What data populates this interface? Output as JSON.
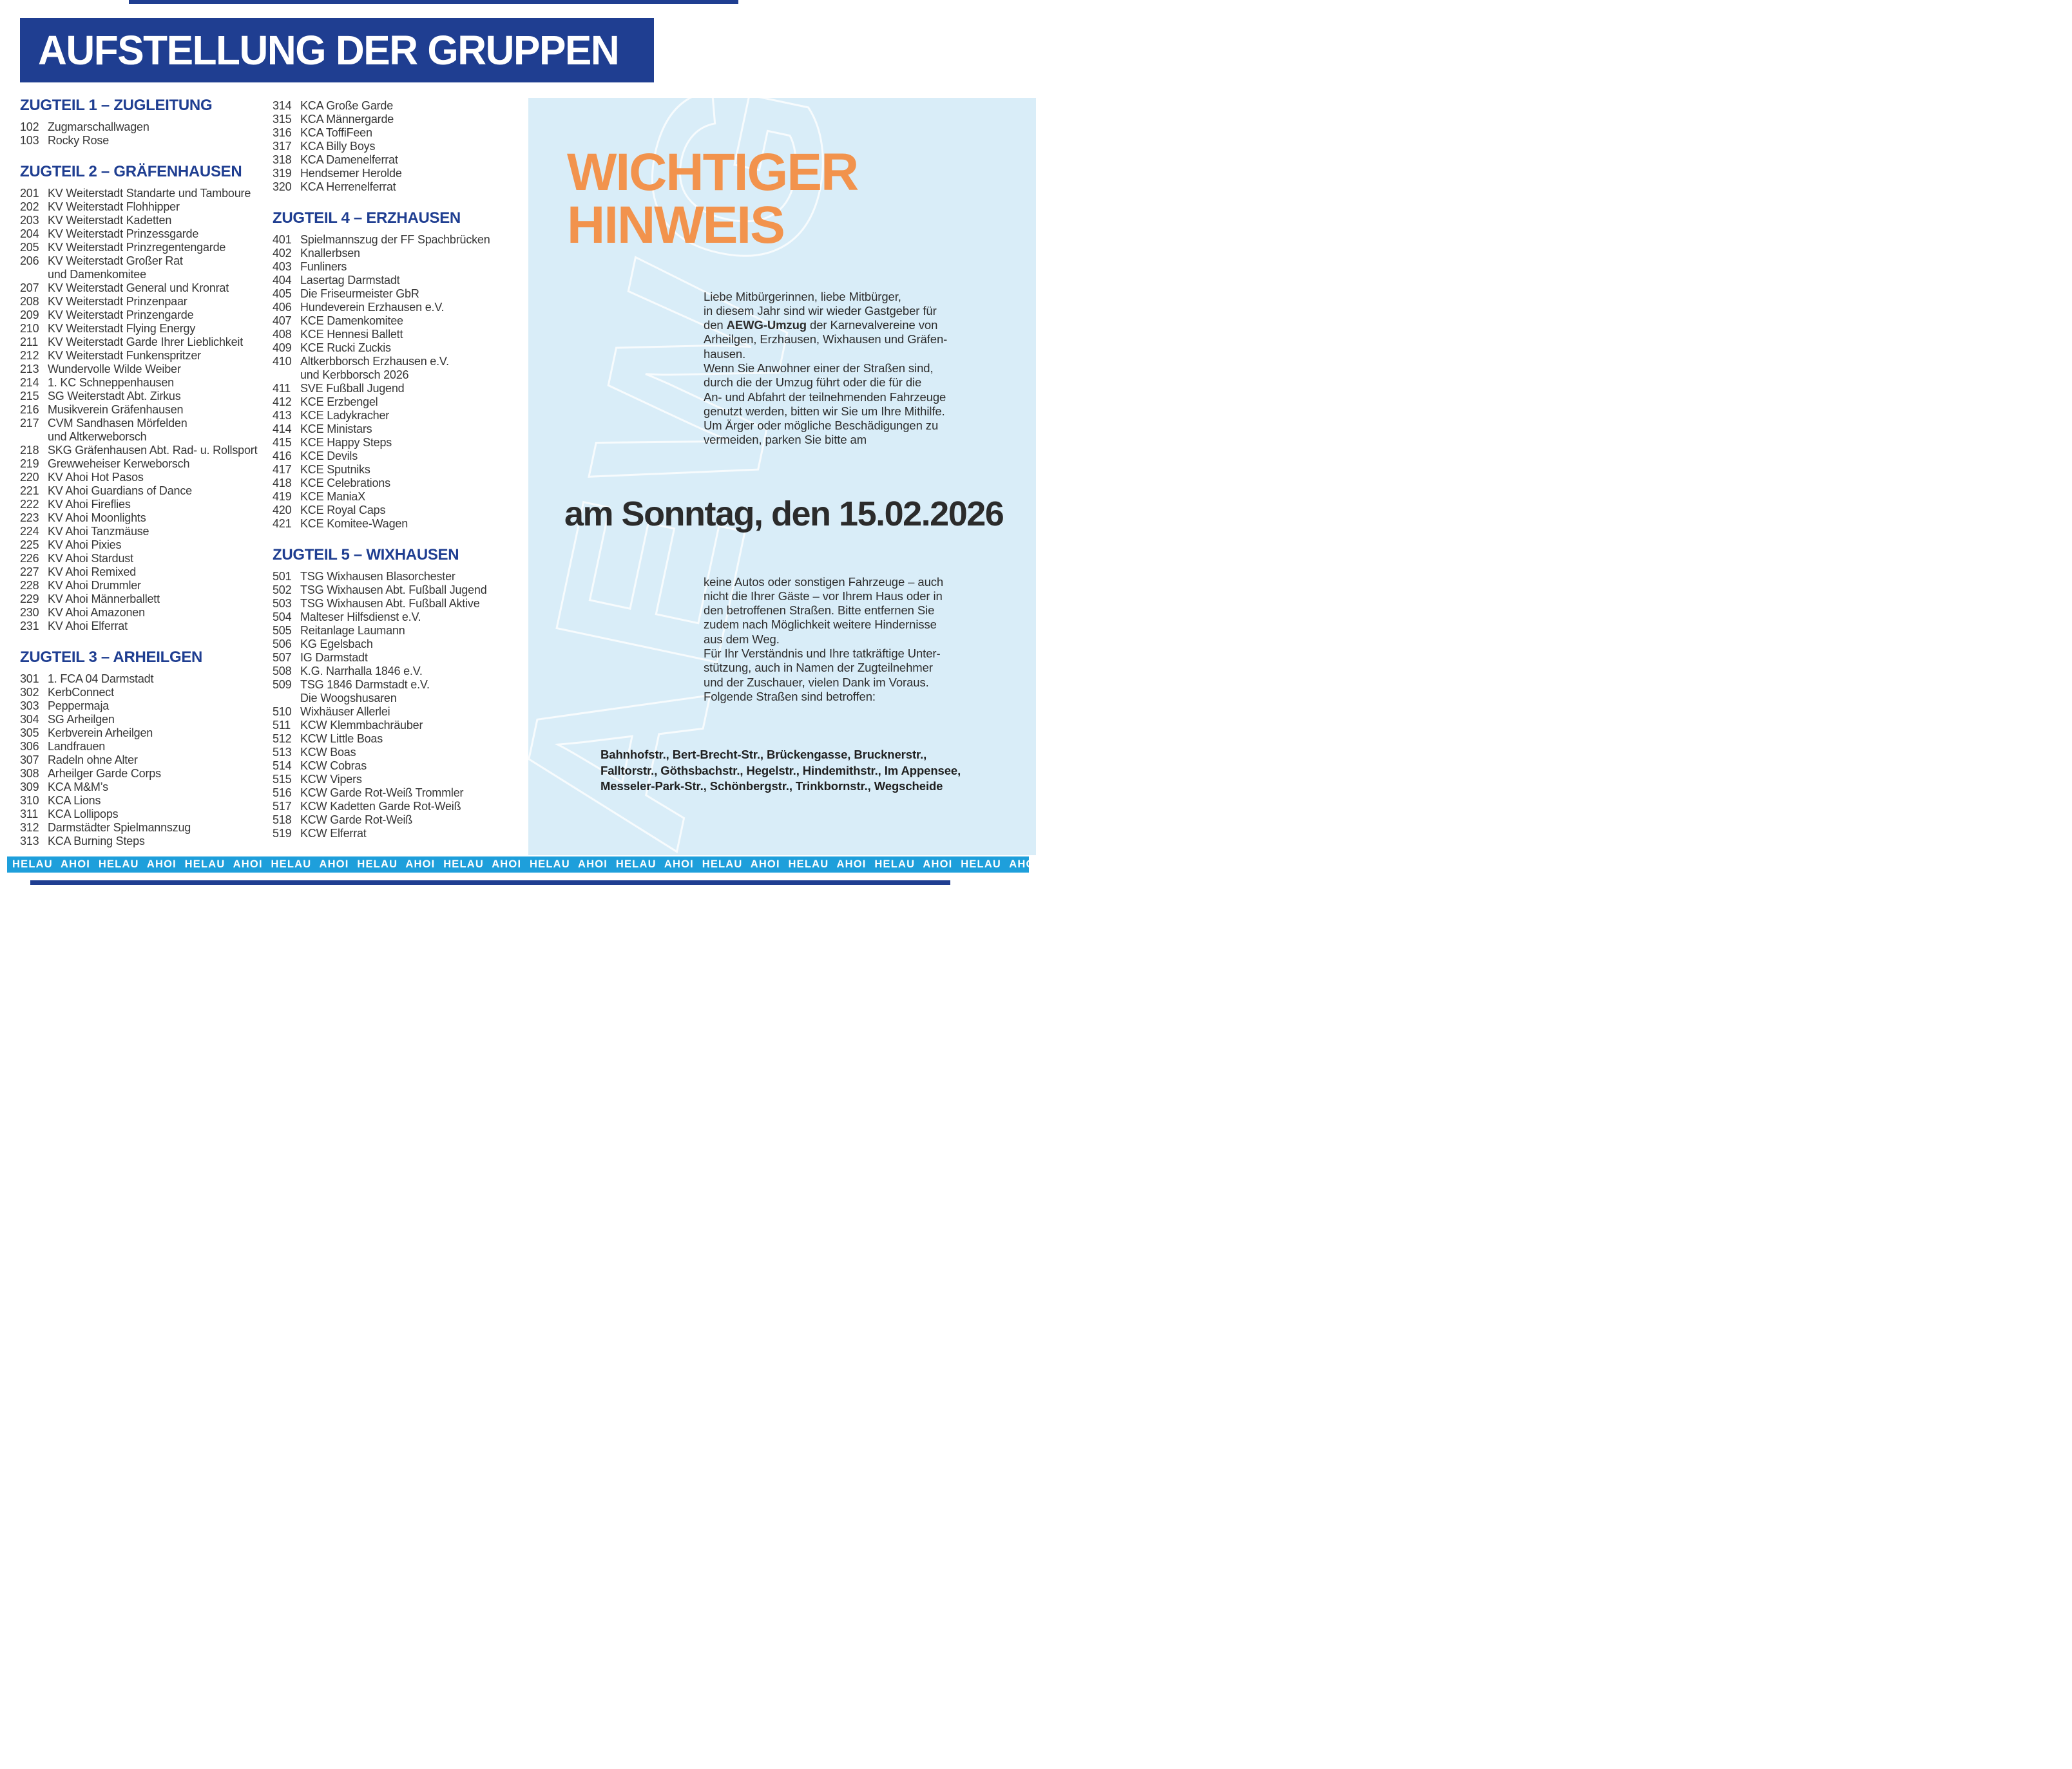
{
  "title": "AUFSTELLUNG DER GRUPPEN",
  "colors": {
    "primary_blue": "#1f3e91",
    "accent_orange": "#f2934d",
    "band_blue": "#1e9fdb",
    "panel_background": "#d9edf8"
  },
  "sections": [
    {
      "heading": "ZUGTEIL 1 – ZUGLEITUNG",
      "items": [
        {
          "no": "102",
          "name": "Zugmarschallwagen"
        },
        {
          "no": "103",
          "name": "Rocky Rose"
        }
      ]
    },
    {
      "heading": "ZUGTEIL 2 – GRÄFENHAUSEN",
      "items": [
        {
          "no": "201",
          "name": "KV Weiterstadt Standarte und Tamboure"
        },
        {
          "no": "202",
          "name": "KV Weiterstadt Flohhipper"
        },
        {
          "no": "203",
          "name": "KV Weiterstadt Kadetten"
        },
        {
          "no": "204",
          "name": "KV Weiterstadt Prinzessgarde"
        },
        {
          "no": "205",
          "name": "KV Weiterstadt Prinzregentengarde"
        },
        {
          "no": "206",
          "name": "KV Weiterstadt Großer Rat",
          "cont": "und Damenkomitee"
        },
        {
          "no": "207",
          "name": "KV Weiterstadt General und Kronrat"
        },
        {
          "no": "208",
          "name": "KV Weiterstadt Prinzenpaar"
        },
        {
          "no": "209",
          "name": "KV Weiterstadt Prinzengarde"
        },
        {
          "no": "210",
          "name": "KV Weiterstadt Flying Energy"
        },
        {
          "no": "211",
          "name": "KV Weiterstadt Garde Ihrer Lieblichkeit"
        },
        {
          "no": "212",
          "name": "KV Weiterstadt Funkenspritzer"
        },
        {
          "no": "213",
          "name": "Wundervolle Wilde Weiber"
        },
        {
          "no": "214",
          "name": "1. KC Schneppenhausen"
        },
        {
          "no": "215",
          "name": "SG Weiterstadt Abt. Zirkus"
        },
        {
          "no": "216",
          "name": "Musikverein Gräfenhausen"
        },
        {
          "no": "217",
          "name": "CVM Sandhasen Mörfelden",
          "cont": "und Altkerweborsch"
        },
        {
          "no": "218",
          "name": "SKG Gräfenhausen Abt. Rad- u. Rollsport"
        },
        {
          "no": "219",
          "name": "Grewweheiser Kerweborsch"
        },
        {
          "no": "220",
          "name": "KV Ahoi Hot Pasos"
        },
        {
          "no": "221",
          "name": "KV Ahoi Guardians of Dance"
        },
        {
          "no": "222",
          "name": "KV Ahoi Fireflies"
        },
        {
          "no": "223",
          "name": "KV Ahoi Moonlights"
        },
        {
          "no": "224",
          "name": "KV Ahoi Tanzmäuse"
        },
        {
          "no": "225",
          "name": "KV Ahoi Pixies"
        },
        {
          "no": "226",
          "name": "KV Ahoi Stardust"
        },
        {
          "no": "227",
          "name": "KV Ahoi Remixed"
        },
        {
          "no": "228",
          "name": "KV Ahoi Drummler"
        },
        {
          "no": "229",
          "name": "KV Ahoi Männerballett"
        },
        {
          "no": "230",
          "name": "KV Ahoi Amazonen"
        },
        {
          "no": "231",
          "name": "KV Ahoi Elferrat"
        }
      ]
    },
    {
      "heading": "ZUGTEIL 3 – ARHEILGEN",
      "items": [
        {
          "no": "301",
          "name": "1. FCA 04 Darmstadt"
        },
        {
          "no": "302",
          "name": "KerbConnect"
        },
        {
          "no": "303",
          "name": "Peppermaja"
        },
        {
          "no": "304",
          "name": "SG Arheilgen"
        },
        {
          "no": "305",
          "name": "Kerbverein Arheilgen"
        },
        {
          "no": "306",
          "name": "Landfrauen"
        },
        {
          "no": "307",
          "name": "Radeln ohne Alter"
        },
        {
          "no": "308",
          "name": "Arheilger Garde Corps"
        },
        {
          "no": "309",
          "name": "KCA M&M’s"
        },
        {
          "no": "310",
          "name": "KCA Lions"
        },
        {
          "no": "311",
          "name": "KCA Lollipops"
        },
        {
          "no": "312",
          "name": "Darmstädter Spielmannszug"
        },
        {
          "no": "313",
          "name": "KCA Burning Steps"
        }
      ]
    },
    {
      "heading": "",
      "items": [
        {
          "no": "314",
          "name": "KCA Große Garde"
        },
        {
          "no": "315",
          "name": "KCA Männergarde"
        },
        {
          "no": "316",
          "name": "KCA ToffiFeen"
        },
        {
          "no": "317",
          "name": "KCA Billy Boys"
        },
        {
          "no": "318",
          "name": "KCA Damenelferrat"
        },
        {
          "no": "319",
          "name": "Hendsemer Herolde"
        },
        {
          "no": "320",
          "name": "KCA Herrenelferrat"
        }
      ]
    },
    {
      "heading": "ZUGTEIL 4 – ERZHAUSEN",
      "items": [
        {
          "no": "401",
          "name": "Spielmannszug der FF Spachbrücken"
        },
        {
          "no": "402",
          "name": "Knallerbsen"
        },
        {
          "no": "403",
          "name": "Funliners"
        },
        {
          "no": "404",
          "name": "Lasertag Darmstadt"
        },
        {
          "no": "405",
          "name": "Die Friseurmeister GbR"
        },
        {
          "no": "406",
          "name": "Hundeverein Erzhausen e.V."
        },
        {
          "no": "407",
          "name": "KCE Damenkomitee"
        },
        {
          "no": "408",
          "name": "KCE Hennesi Ballett"
        },
        {
          "no": "409",
          "name": "KCE Rucki Zuckis"
        },
        {
          "no": "410",
          "name": "Altkerbborsch Erzhausen e.V.",
          "cont": "und Kerbborsch 2026"
        },
        {
          "no": "411",
          "name": "SVE Fußball Jugend"
        },
        {
          "no": "412",
          "name": "KCE Erzbengel"
        },
        {
          "no": "413",
          "name": "KCE Ladykracher"
        },
        {
          "no": "414",
          "name": "KCE Ministars"
        },
        {
          "no": "415",
          "name": "KCE Happy Steps"
        },
        {
          "no": "416",
          "name": "KCE Devils"
        },
        {
          "no": "417",
          "name": "KCE Sputniks"
        },
        {
          "no": "418",
          "name": "KCE Celebrations"
        },
        {
          "no": "419",
          "name": "KCE ManiaX"
        },
        {
          "no": "420",
          "name": "KCE Royal Caps"
        },
        {
          "no": "421",
          "name": "KCE Komitee-Wagen"
        }
      ]
    },
    {
      "heading": "ZUGTEIL 5 – WIXHAUSEN",
      "items": [
        {
          "no": "501",
          "name": "TSG Wixhausen Blasorchester"
        },
        {
          "no": "502",
          "name": "TSG Wixhausen Abt. Fußball Jugend"
        },
        {
          "no": "503",
          "name": "TSG Wixhausen Abt. Fußball Aktive"
        },
        {
          "no": "504",
          "name": "Malteser Hilfsdienst e.V."
        },
        {
          "no": "505",
          "name": "Reitanlage Laumann"
        },
        {
          "no": "506",
          "name": "KG Egelsbach"
        },
        {
          "no": "507",
          "name": "IG Darmstadt"
        },
        {
          "no": "508",
          "name": "K.G. Narrhalla 1846 e.V."
        },
        {
          "no": "509",
          "name": "TSG 1846 Darmstadt e.V.",
          "cont": "Die Woogshusaren"
        },
        {
          "no": "510",
          "name": "Wixhäuser Allerlei"
        },
        {
          "no": "511",
          "name": "KCW Klemmbachräuber"
        },
        {
          "no": "512",
          "name": "KCW Little Boas"
        },
        {
          "no": "513",
          "name": "KCW Boas"
        },
        {
          "no": "514",
          "name": "KCW Cobras"
        },
        {
          "no": "515",
          "name": "KCW Vipers"
        },
        {
          "no": "516",
          "name": "KCW Garde Rot-Weiß Trommler"
        },
        {
          "no": "517",
          "name": "KCW Kadetten Garde Rot-Weiß"
        },
        {
          "no": "518",
          "name": "KCW Garde Rot-Weiß"
        },
        {
          "no": "519",
          "name": "KCW Elferrat"
        }
      ]
    }
  ],
  "notice": {
    "title": "WICHTIGER\nHINWEIS",
    "watermark": "AEWG",
    "para1_pre": "Liebe Mitbürgerinnen, liebe Mitbürger,\nin diesem Jahr sind wir wieder Gastgeber für\nden ",
    "para1_bold": "AEWG-Umzug",
    "para1_post": " der Karnevalvereine von\nArheilgen, Erzhausen, Wixhausen und Gräfen-\nhausen.\nWenn Sie Anwohner einer der Straßen sind,\ndurch die der Umzug führt oder die für die\nAn- und Abfahrt der teilnehmenden Fahrzeuge\ngenutzt werden, bitten wir Sie um Ihre Mithilfe.\nUm Ärger oder mögliche Beschädigungen zu\nvermeiden, parken Sie bitte am",
    "date_line": "am Sonntag, den 15.02.2026",
    "para2": "keine Autos oder sonstigen Fahrzeuge – auch\nnicht die Ihrer Gäste – vor Ihrem Haus oder in\nden betroffenen Straßen. Bitte entfernen Sie\nzudem nach Möglichkeit weitere Hindernisse\naus dem Weg.\nFür Ihr Verständnis und Ihre tatkräftige Unter-\nstützung, auch in Namen der Zugteilnehmer\nund der Zuschauer, vielen Dank im Voraus.\nFolgende Straßen sind betroffen:",
    "streets": "Bahnhofstr., Bert-Brecht-Str., Brückengasse, Brucknerstr.,\nFalltorstr., Göthsbachstr., Hegelstr., Hindemithstr., Im Appensee,\nMesseler-Park-Str., Schönbergstr., Trinkbornstr., Wegscheide"
  },
  "helau_band": "HELAU AHOI HELAU AHOI HELAU AHOI HELAU AHOI HELAU AHOI HELAU AHOI HELAU AHOI HELAU AHOI HELAU AHOI HELAU AHOI HELAU AHOI HELAU AHOI HELAU AHOI"
}
